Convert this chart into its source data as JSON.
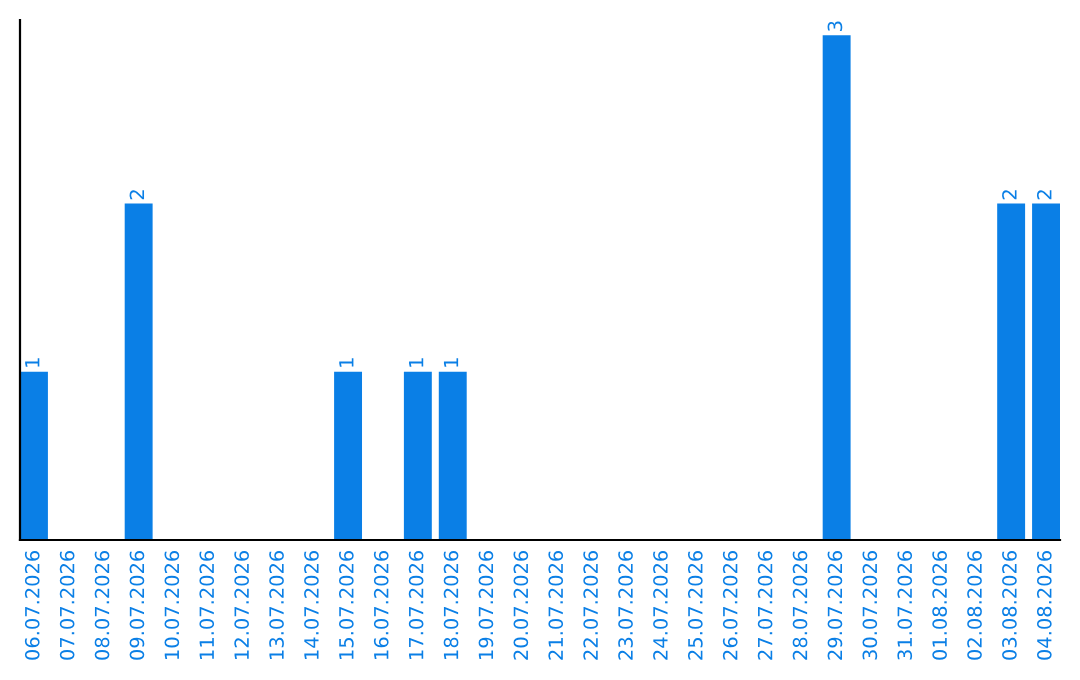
{
  "chart_data": {
    "type": "bar",
    "categories": [
      "06.07.2026",
      "07.07.2026",
      "08.07.2026",
      "09.07.2026",
      "10.07.2026",
      "11.07.2026",
      "12.07.2026",
      "13.07.2026",
      "14.07.2026",
      "15.07.2026",
      "16.07.2026",
      "17.07.2026",
      "18.07.2026",
      "19.07.2026",
      "20.07.2026",
      "21.07.2026",
      "22.07.2026",
      "23.07.2026",
      "24.07.2026",
      "25.07.2026",
      "26.07.2026",
      "27.07.2026",
      "28.07.2026",
      "29.07.2026",
      "30.07.2026",
      "31.07.2026",
      "01.08.2026",
      "02.08.2026",
      "03.08.2026",
      "04.08.2026"
    ],
    "values": [
      1,
      0,
      0,
      2,
      0,
      0,
      0,
      0,
      0,
      1,
      0,
      1,
      1,
      0,
      0,
      0,
      0,
      0,
      0,
      0,
      0,
      0,
      0,
      3,
      0,
      0,
      0,
      0,
      2,
      2
    ],
    "value_labels": [
      "1",
      null,
      null,
      "2",
      null,
      null,
      null,
      null,
      null,
      "1",
      null,
      "1",
      "1",
      null,
      null,
      null,
      null,
      null,
      null,
      null,
      null,
      null,
      null,
      "3",
      null,
      null,
      null,
      null,
      "2",
      "2"
    ],
    "color": "#0a7fe6",
    "tick_labels": "x"
  }
}
